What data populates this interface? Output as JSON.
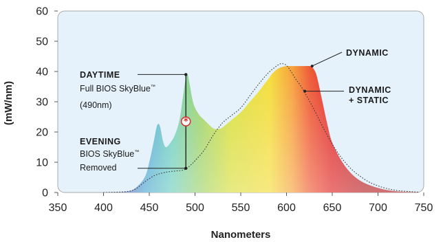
{
  "chart_data": {
    "type": "area",
    "xlabel": "Nanometers",
    "ylabel": "(mW/nm)",
    "xlim": [
      350,
      750
    ],
    "ylim": [
      0,
      60
    ],
    "xticks": [
      350,
      400,
      450,
      500,
      550,
      600,
      650,
      700,
      750
    ],
    "yticks": [
      0,
      10,
      20,
      30,
      40,
      50,
      60
    ],
    "grid": false,
    "series": [
      {
        "name": "DYNAMIC",
        "style": "filled spectrum",
        "x": [
          400,
          425,
          435,
          445,
          450,
          455,
          458,
          460,
          462,
          465,
          468,
          472,
          478,
          483,
          487,
          490,
          492,
          494,
          497,
          500,
          505,
          510,
          515,
          520,
          525,
          530,
          540,
          550,
          560,
          570,
          580,
          585,
          590,
          595,
          600,
          605,
          610,
          615,
          620,
          625,
          628,
          632,
          635,
          640,
          645,
          650,
          660,
          670,
          680,
          690,
          700,
          710,
          720,
          730,
          740,
          750
        ],
        "y": [
          0,
          0.3,
          1.5,
          5,
          10,
          17,
          21.5,
          22.7,
          21.5,
          17,
          15,
          16,
          19,
          24,
          32,
          38,
          39,
          36,
          31,
          28,
          25.5,
          24,
          22.5,
          21.2,
          21,
          21.5,
          24,
          26.5,
          30,
          33.5,
          37.5,
          39.5,
          40.8,
          41.5,
          41.8,
          41.8,
          41.8,
          41.8,
          41.8,
          41.8,
          41.5,
          39.5,
          36,
          29,
          22,
          16.5,
          10.5,
          6.5,
          4,
          2.5,
          1.5,
          0.8,
          0.4,
          0.2,
          0.1,
          0
        ]
      },
      {
        "name": "DYNAMIC + STATIC",
        "style": "dotted",
        "x": [
          400,
          425,
          435,
          445,
          455,
          465,
          475,
          485,
          490,
          495,
          500,
          510,
          520,
          530,
          540,
          550,
          560,
          570,
          580,
          590,
          595,
          600,
          605,
          610,
          615,
          620,
          630,
          640,
          650,
          660,
          670,
          680,
          690,
          700,
          710,
          720,
          730,
          740,
          750
        ],
        "y": [
          0,
          0.3,
          1.2,
          3.5,
          5.5,
          6.5,
          7,
          7.3,
          7.8,
          9,
          10.5,
          14,
          19,
          23,
          25.5,
          28,
          32,
          36,
          39.5,
          42,
          42.6,
          42,
          40,
          37.5,
          35.5,
          33,
          27.5,
          21.5,
          16,
          11.5,
          8,
          5.5,
          3.5,
          2.2,
          1.3,
          0.7,
          0.4,
          0.2,
          0
        ]
      }
    ],
    "annotations": {
      "daytime": {
        "title": "DAYTIME",
        "line1": "Full BIOS SkyBlue",
        "tm": "™",
        "line2": "(490nm)",
        "x": 490,
        "y": 39
      },
      "evening": {
        "title": "EVENING",
        "line1": "BIOS SkyBlue",
        "tm": "™",
        "line2": "Removed",
        "x": 490,
        "y": 8
      },
      "dynamic": {
        "label": "DYNAMIC",
        "x": 628,
        "y": 41.8
      },
      "dynamic_static": {
        "line1": "DYNAMIC",
        "line2": "+ STATIC",
        "x": 620,
        "y": 33.5
      }
    },
    "colors": {
      "background": "#e5f2fb",
      "border": "#a9aaa9",
      "marker": "#d72b2b"
    }
  }
}
